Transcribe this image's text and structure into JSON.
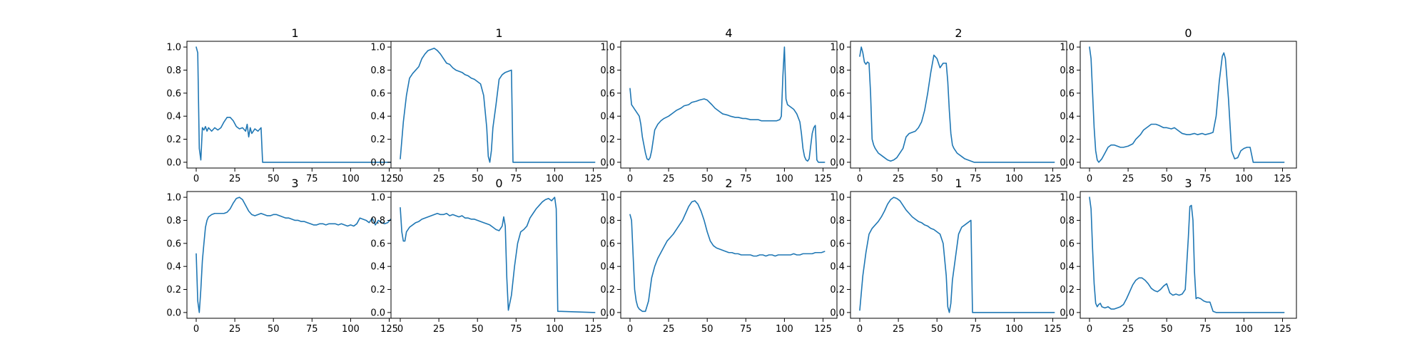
{
  "figure": {
    "series_color": "#1f77b4"
  },
  "chart_data": [
    {
      "type": "line",
      "title": "1",
      "xlim": [
        -6,
        134
      ],
      "ylim": [
        -0.05,
        1.05
      ],
      "xticks": [
        0,
        25,
        50,
        75,
        100,
        125
      ],
      "yticks": [
        0.0,
        0.2,
        0.4,
        0.6,
        0.8,
        1.0
      ],
      "x": [
        0,
        1,
        2,
        3,
        4,
        5,
        6,
        7,
        8,
        10,
        12,
        14,
        16,
        18,
        20,
        22,
        24,
        26,
        28,
        30,
        32,
        33,
        34,
        35,
        36,
        38,
        40,
        42,
        43,
        44,
        126
      ],
      "y": [
        1.0,
        0.95,
        0.12,
        0.02,
        0.3,
        0.28,
        0.31,
        0.27,
        0.3,
        0.27,
        0.3,
        0.28,
        0.3,
        0.35,
        0.39,
        0.39,
        0.36,
        0.31,
        0.29,
        0.3,
        0.27,
        0.33,
        0.22,
        0.3,
        0.25,
        0.29,
        0.27,
        0.3,
        0.0,
        0.0,
        0.0
      ]
    },
    {
      "type": "line",
      "title": "1",
      "xlim": [
        -6,
        134
      ],
      "ylim": [
        -0.05,
        1.05
      ],
      "xticks": [
        0,
        25,
        50,
        75,
        100,
        125
      ],
      "yticks": [
        0.0,
        0.2,
        0.4,
        0.6,
        0.8,
        1.0
      ],
      "x": [
        0,
        2,
        4,
        6,
        8,
        10,
        12,
        14,
        16,
        18,
        20,
        22,
        24,
        26,
        28,
        30,
        32,
        34,
        36,
        38,
        40,
        42,
        44,
        46,
        48,
        50,
        52,
        54,
        56,
        57,
        58,
        59,
        60,
        62,
        64,
        66,
        68,
        70,
        72,
        73,
        74,
        126
      ],
      "y": [
        0.03,
        0.35,
        0.58,
        0.73,
        0.77,
        0.8,
        0.83,
        0.9,
        0.94,
        0.97,
        0.98,
        0.99,
        0.97,
        0.94,
        0.9,
        0.86,
        0.85,
        0.82,
        0.8,
        0.79,
        0.78,
        0.76,
        0.75,
        0.73,
        0.72,
        0.7,
        0.68,
        0.58,
        0.3,
        0.05,
        0.0,
        0.1,
        0.3,
        0.5,
        0.72,
        0.76,
        0.78,
        0.79,
        0.8,
        0.0,
        0.0,
        0.0
      ]
    },
    {
      "type": "line",
      "title": "4",
      "xlim": [
        -6,
        134
      ],
      "ylim": [
        -0.05,
        1.05
      ],
      "xticks": [
        0,
        25,
        50,
        75,
        100,
        125
      ],
      "yticks": [
        0.0,
        0.2,
        0.4,
        0.6,
        0.8,
        1.0
      ],
      "x": [
        0,
        1,
        2,
        4,
        6,
        7,
        8,
        9,
        10,
        11,
        12,
        13,
        14,
        16,
        18,
        20,
        22,
        25,
        28,
        30,
        33,
        35,
        38,
        40,
        43,
        45,
        48,
        50,
        53,
        55,
        58,
        60,
        63,
        65,
        68,
        70,
        73,
        75,
        78,
        80,
        83,
        85,
        88,
        90,
        93,
        95,
        97,
        98,
        99,
        100,
        101,
        102,
        104,
        106,
        108,
        110,
        111,
        112,
        113,
        114,
        115,
        116,
        118,
        119,
        120,
        121,
        122,
        124,
        126
      ],
      "y": [
        0.64,
        0.5,
        0.48,
        0.44,
        0.4,
        0.33,
        0.22,
        0.15,
        0.08,
        0.03,
        0.02,
        0.04,
        0.1,
        0.28,
        0.33,
        0.36,
        0.38,
        0.4,
        0.43,
        0.45,
        0.47,
        0.49,
        0.5,
        0.52,
        0.53,
        0.54,
        0.55,
        0.54,
        0.5,
        0.47,
        0.44,
        0.42,
        0.41,
        0.4,
        0.39,
        0.39,
        0.38,
        0.38,
        0.37,
        0.37,
        0.37,
        0.36,
        0.36,
        0.36,
        0.36,
        0.36,
        0.37,
        0.4,
        0.75,
        1.0,
        0.55,
        0.5,
        0.48,
        0.46,
        0.42,
        0.35,
        0.25,
        0.12,
        0.05,
        0.02,
        0.01,
        0.03,
        0.25,
        0.3,
        0.32,
        0.02,
        0.0,
        0.0,
        0.0
      ]
    },
    {
      "type": "line",
      "title": "2",
      "xlim": [
        -6,
        134
      ],
      "ylim": [
        -0.05,
        1.05
      ],
      "xticks": [
        0,
        25,
        50,
        75,
        100,
        125
      ],
      "yticks": [
        0.0,
        0.2,
        0.4,
        0.6,
        0.8,
        1.0
      ],
      "x": [
        0,
        1,
        2,
        3,
        4,
        5,
        6,
        7,
        8,
        9,
        10,
        11,
        12,
        14,
        16,
        18,
        20,
        22,
        24,
        26,
        28,
        30,
        32,
        34,
        36,
        38,
        40,
        42,
        44,
        46,
        48,
        50,
        52,
        54,
        56,
        57,
        58,
        59,
        60,
        61,
        62,
        63,
        64,
        66,
        68,
        70,
        72,
        74,
        76,
        126
      ],
      "y": [
        0.92,
        1.0,
        0.95,
        0.87,
        0.85,
        0.87,
        0.86,
        0.6,
        0.2,
        0.15,
        0.12,
        0.1,
        0.08,
        0.06,
        0.04,
        0.02,
        0.01,
        0.02,
        0.04,
        0.08,
        0.12,
        0.22,
        0.25,
        0.26,
        0.27,
        0.3,
        0.35,
        0.45,
        0.6,
        0.78,
        0.93,
        0.9,
        0.82,
        0.86,
        0.86,
        0.7,
        0.45,
        0.25,
        0.15,
        0.12,
        0.1,
        0.08,
        0.07,
        0.05,
        0.03,
        0.02,
        0.01,
        0.0,
        0.0,
        0.0
      ]
    },
    {
      "type": "line",
      "title": "0",
      "xlim": [
        -6,
        134
      ],
      "ylim": [
        -0.05,
        1.05
      ],
      "xticks": [
        0,
        25,
        50,
        75,
        100,
        125
      ],
      "yticks": [
        0.0,
        0.2,
        0.4,
        0.6,
        0.8,
        1.0
      ],
      "x": [
        0,
        1,
        2,
        3,
        4,
        5,
        6,
        8,
        10,
        12,
        14,
        16,
        18,
        20,
        22,
        25,
        28,
        30,
        33,
        35,
        38,
        40,
        43,
        45,
        48,
        50,
        53,
        55,
        58,
        60,
        63,
        65,
        68,
        70,
        73,
        75,
        78,
        80,
        82,
        84,
        86,
        87,
        88,
        90,
        92,
        94,
        96,
        98,
        100,
        102,
        104,
        106,
        126
      ],
      "y": [
        1.0,
        0.9,
        0.6,
        0.3,
        0.1,
        0.02,
        0.0,
        0.03,
        0.08,
        0.13,
        0.15,
        0.15,
        0.14,
        0.13,
        0.13,
        0.14,
        0.16,
        0.2,
        0.24,
        0.28,
        0.31,
        0.33,
        0.33,
        0.32,
        0.3,
        0.3,
        0.29,
        0.3,
        0.27,
        0.25,
        0.24,
        0.24,
        0.25,
        0.24,
        0.25,
        0.24,
        0.25,
        0.26,
        0.4,
        0.7,
        0.92,
        0.95,
        0.9,
        0.55,
        0.1,
        0.03,
        0.04,
        0.1,
        0.12,
        0.13,
        0.13,
        0.0,
        0.0
      ]
    },
    {
      "type": "line",
      "title": "3",
      "xlim": [
        -6,
        134
      ],
      "ylim": [
        -0.05,
        1.05
      ],
      "xticks": [
        0,
        25,
        50,
        75,
        100,
        125
      ],
      "yticks": [
        0.0,
        0.2,
        0.4,
        0.6,
        0.8,
        1.0
      ],
      "x": [
        0,
        1,
        2,
        3,
        4,
        5,
        6,
        7,
        8,
        10,
        12,
        14,
        16,
        18,
        20,
        22,
        24,
        26,
        28,
        30,
        32,
        34,
        36,
        38,
        40,
        42,
        44,
        46,
        48,
        50,
        52,
        54,
        56,
        58,
        60,
        62,
        64,
        66,
        68,
        70,
        72,
        74,
        76,
        78,
        80,
        82,
        84,
        86,
        88,
        90,
        92,
        94,
        96,
        98,
        100,
        102,
        104,
        106,
        108,
        110,
        112,
        114,
        116,
        118,
        120,
        122,
        124,
        126
      ],
      "y": [
        0.51,
        0.1,
        0.0,
        0.2,
        0.45,
        0.6,
        0.74,
        0.8,
        0.83,
        0.85,
        0.86,
        0.86,
        0.86,
        0.86,
        0.87,
        0.9,
        0.95,
        0.99,
        1.0,
        0.98,
        0.93,
        0.88,
        0.85,
        0.84,
        0.85,
        0.86,
        0.85,
        0.84,
        0.84,
        0.85,
        0.85,
        0.84,
        0.83,
        0.82,
        0.82,
        0.81,
        0.8,
        0.8,
        0.79,
        0.79,
        0.78,
        0.77,
        0.76,
        0.76,
        0.77,
        0.77,
        0.76,
        0.77,
        0.77,
        0.77,
        0.76,
        0.77,
        0.76,
        0.75,
        0.76,
        0.75,
        0.77,
        0.82,
        0.81,
        0.8,
        0.78,
        0.82,
        0.76,
        0.8,
        0.78,
        0.77,
        0.78,
        0.81
      ]
    },
    {
      "type": "line",
      "title": "0",
      "xlim": [
        -6,
        134
      ],
      "ylim": [
        -0.05,
        1.05
      ],
      "xticks": [
        0,
        25,
        50,
        75,
        100,
        125
      ],
      "yticks": [
        0.0,
        0.2,
        0.4,
        0.6,
        0.8,
        1.0
      ],
      "x": [
        0,
        1,
        2,
        3,
        4,
        6,
        8,
        10,
        12,
        14,
        16,
        18,
        20,
        22,
        24,
        26,
        28,
        30,
        32,
        34,
        36,
        38,
        40,
        42,
        44,
        46,
        48,
        50,
        52,
        54,
        56,
        58,
        60,
        62,
        64,
        66,
        67,
        68,
        69,
        70,
        72,
        74,
        76,
        78,
        80,
        82,
        84,
        86,
        88,
        90,
        92,
        94,
        96,
        98,
        100,
        101,
        102,
        104,
        126
      ],
      "y": [
        0.91,
        0.7,
        0.62,
        0.62,
        0.7,
        0.74,
        0.76,
        0.78,
        0.79,
        0.81,
        0.82,
        0.83,
        0.84,
        0.85,
        0.86,
        0.85,
        0.85,
        0.86,
        0.84,
        0.85,
        0.84,
        0.83,
        0.84,
        0.82,
        0.82,
        0.81,
        0.81,
        0.8,
        0.79,
        0.78,
        0.77,
        0.76,
        0.74,
        0.72,
        0.71,
        0.75,
        0.83,
        0.75,
        0.3,
        0.02,
        0.15,
        0.4,
        0.6,
        0.7,
        0.72,
        0.75,
        0.82,
        0.86,
        0.9,
        0.93,
        0.96,
        0.98,
        0.99,
        0.97,
        1.0,
        0.9,
        0.01,
        0.01,
        0.0
      ]
    },
    {
      "type": "line",
      "title": "2",
      "xlim": [
        -6,
        134
      ],
      "ylim": [
        -0.05,
        1.05
      ],
      "xticks": [
        0,
        25,
        50,
        75,
        100,
        125
      ],
      "yticks": [
        0.0,
        0.2,
        0.4,
        0.6,
        0.8,
        1.0
      ],
      "x": [
        0,
        1,
        2,
        3,
        4,
        5,
        6,
        8,
        10,
        12,
        14,
        16,
        18,
        20,
        22,
        24,
        26,
        28,
        30,
        32,
        34,
        36,
        38,
        40,
        42,
        44,
        46,
        48,
        50,
        52,
        54,
        56,
        58,
        60,
        62,
        64,
        66,
        68,
        70,
        72,
        74,
        76,
        78,
        80,
        82,
        84,
        86,
        88,
        90,
        92,
        94,
        96,
        98,
        100,
        102,
        104,
        106,
        108,
        110,
        112,
        114,
        116,
        118,
        120,
        122,
        124,
        126
      ],
      "y": [
        0.85,
        0.8,
        0.5,
        0.2,
        0.1,
        0.05,
        0.03,
        0.01,
        0.01,
        0.1,
        0.3,
        0.4,
        0.47,
        0.52,
        0.57,
        0.62,
        0.65,
        0.68,
        0.72,
        0.76,
        0.8,
        0.86,
        0.92,
        0.96,
        0.97,
        0.94,
        0.88,
        0.8,
        0.7,
        0.62,
        0.58,
        0.56,
        0.55,
        0.54,
        0.53,
        0.52,
        0.52,
        0.51,
        0.51,
        0.5,
        0.5,
        0.5,
        0.5,
        0.49,
        0.49,
        0.5,
        0.5,
        0.49,
        0.5,
        0.5,
        0.49,
        0.5,
        0.5,
        0.5,
        0.5,
        0.5,
        0.51,
        0.5,
        0.5,
        0.51,
        0.51,
        0.51,
        0.51,
        0.52,
        0.52,
        0.52,
        0.53
      ]
    },
    {
      "type": "line",
      "title": "1",
      "xlim": [
        -6,
        134
      ],
      "ylim": [
        -0.05,
        1.05
      ],
      "xticks": [
        0,
        25,
        50,
        75,
        100,
        125
      ],
      "yticks": [
        0.0,
        0.2,
        0.4,
        0.6,
        0.8,
        1.0
      ],
      "x": [
        0,
        2,
        4,
        6,
        8,
        10,
        12,
        14,
        16,
        18,
        20,
        22,
        24,
        26,
        28,
        30,
        32,
        34,
        36,
        38,
        40,
        42,
        44,
        46,
        48,
        50,
        52,
        54,
        56,
        57,
        58,
        59,
        60,
        62,
        64,
        66,
        68,
        70,
        72,
        73,
        74,
        126
      ],
      "y": [
        0.02,
        0.32,
        0.52,
        0.68,
        0.73,
        0.76,
        0.79,
        0.83,
        0.88,
        0.94,
        0.98,
        1.0,
        0.99,
        0.97,
        0.93,
        0.89,
        0.86,
        0.83,
        0.81,
        0.79,
        0.78,
        0.76,
        0.75,
        0.73,
        0.72,
        0.7,
        0.68,
        0.6,
        0.32,
        0.05,
        0.0,
        0.08,
        0.28,
        0.48,
        0.68,
        0.74,
        0.76,
        0.78,
        0.8,
        0.0,
        0.0,
        0.0
      ]
    },
    {
      "type": "line",
      "title": "3",
      "xlim": [
        -6,
        134
      ],
      "ylim": [
        -0.05,
        1.05
      ],
      "xticks": [
        0,
        25,
        50,
        75,
        100,
        125
      ],
      "yticks": [
        0.0,
        0.2,
        0.4,
        0.6,
        0.8,
        1.0
      ],
      "x": [
        0,
        1,
        2,
        3,
        4,
        5,
        6,
        7,
        8,
        10,
        12,
        14,
        16,
        18,
        20,
        22,
        24,
        26,
        28,
        30,
        32,
        34,
        36,
        38,
        40,
        42,
        44,
        46,
        48,
        50,
        52,
        54,
        56,
        58,
        60,
        62,
        64,
        65,
        66,
        67,
        68,
        69,
        70,
        72,
        74,
        76,
        78,
        80,
        82,
        84,
        126
      ],
      "y": [
        1.0,
        0.9,
        0.55,
        0.25,
        0.08,
        0.05,
        0.07,
        0.08,
        0.05,
        0.04,
        0.05,
        0.03,
        0.03,
        0.04,
        0.05,
        0.07,
        0.12,
        0.18,
        0.24,
        0.28,
        0.3,
        0.3,
        0.28,
        0.25,
        0.21,
        0.19,
        0.18,
        0.2,
        0.23,
        0.25,
        0.17,
        0.15,
        0.16,
        0.15,
        0.16,
        0.2,
        0.65,
        0.92,
        0.93,
        0.8,
        0.35,
        0.12,
        0.13,
        0.12,
        0.1,
        0.09,
        0.09,
        0.01,
        0.0,
        0.0,
        0.0
      ]
    }
  ]
}
